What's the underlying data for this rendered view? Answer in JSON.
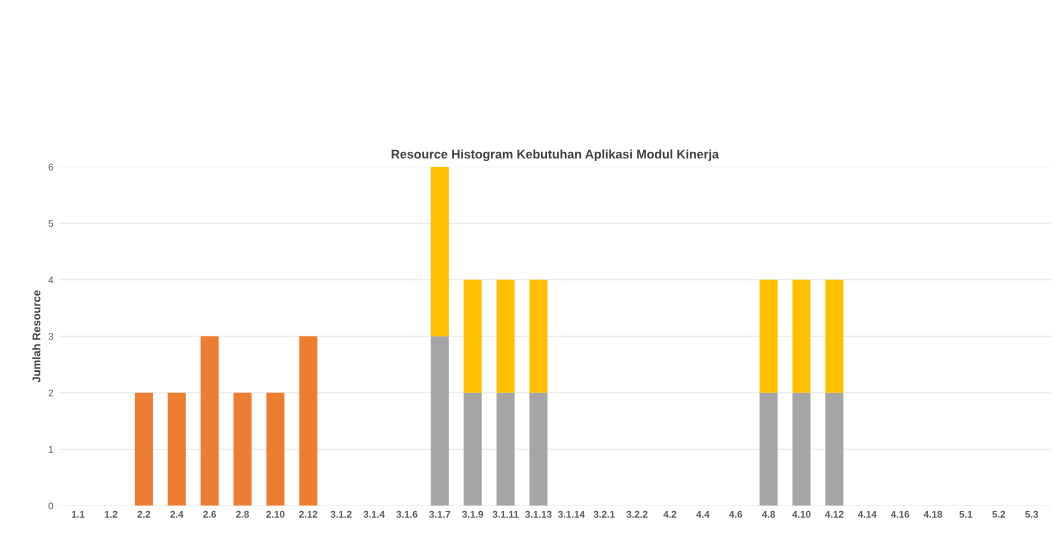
{
  "chart_data": {
    "type": "bar",
    "title": "Resource Histogram Kebutuhan Aplikasi Modul Kinerja",
    "ylabel": "Jumlah Resource",
    "stacked": true,
    "grid": "y",
    "legend": false,
    "categories": [
      "1.1",
      "1.2",
      "2.2",
      "2.4",
      "2.6",
      "2.8",
      "2.10",
      "2.12",
      "3.1.2",
      "3.1.4",
      "3.1.6",
      "3.1.7",
      "3.1.9",
      "3.1.11",
      "3.1.13",
      "3.1.14",
      "3.2.1",
      "3.2.2",
      "4.2",
      "4.4",
      "4.6",
      "4.8",
      "4.10",
      "4.12",
      "4.14",
      "4.16",
      "4.18",
      "5.1",
      "5.2",
      "5.3"
    ],
    "series": [
      {
        "color": "#ed7d31",
        "values": [
          null,
          null,
          2,
          2,
          3,
          2,
          2,
          3,
          null,
          null,
          null,
          null,
          null,
          null,
          null,
          null,
          null,
          null,
          null,
          null,
          null,
          null,
          null,
          null,
          null,
          null,
          null,
          null,
          null,
          null
        ]
      },
      {
        "color": "#a5a5a5",
        "values": [
          null,
          null,
          null,
          null,
          null,
          null,
          null,
          null,
          null,
          null,
          null,
          3,
          2,
          2,
          2,
          null,
          null,
          null,
          null,
          null,
          null,
          2,
          2,
          2,
          null,
          null,
          null,
          null,
          null,
          null
        ]
      },
      {
        "color": "#ffc000",
        "values": [
          null,
          null,
          null,
          null,
          null,
          null,
          null,
          null,
          null,
          null,
          null,
          3,
          2,
          2,
          2,
          null,
          null,
          null,
          null,
          null,
          null,
          2,
          2,
          2,
          null,
          null,
          null,
          null,
          null,
          null
        ]
      }
    ],
    "ylim": [
      0,
      6
    ],
    "yticks": [
      0,
      1,
      2,
      3,
      4,
      5,
      6
    ]
  }
}
